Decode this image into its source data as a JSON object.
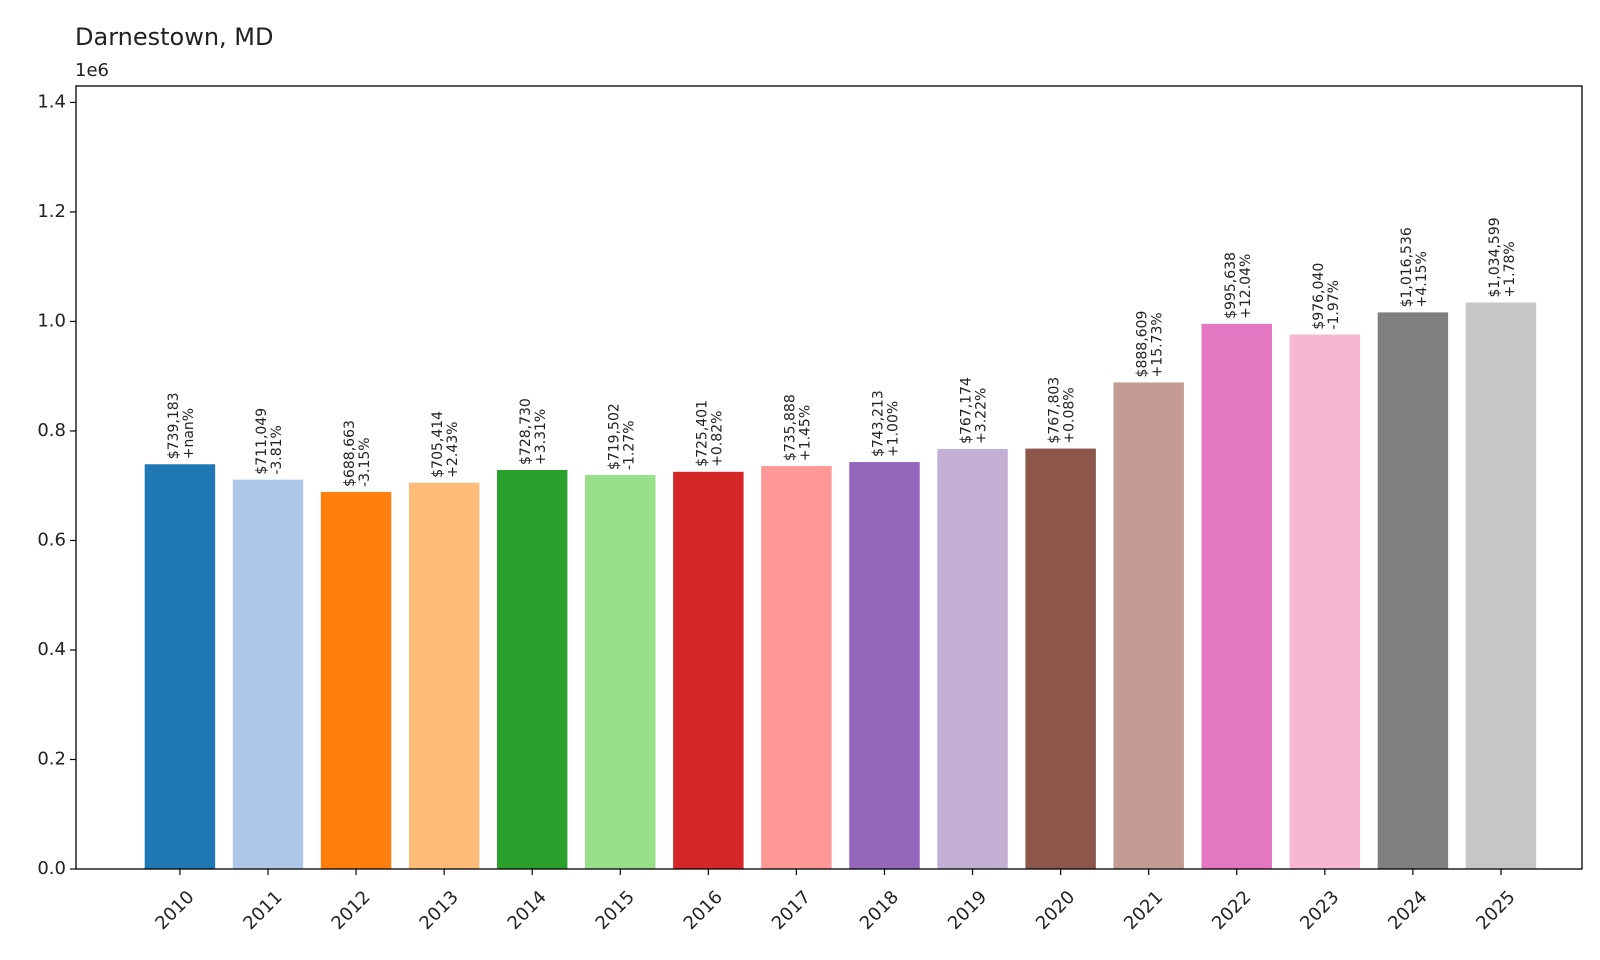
{
  "chart_data": {
    "type": "bar",
    "title": "Darnestown, MD",
    "y_offset_label": "1e6",
    "xlabel": "",
    "ylabel": "",
    "ylim": [
      0,
      1.43
    ],
    "yticks": [
      "0.0",
      "0.2",
      "0.4",
      "0.6",
      "0.8",
      "1.0",
      "1.2",
      "1.4"
    ],
    "ytick_values": [
      0,
      0.2,
      0.4,
      0.6,
      0.8,
      1.0,
      1.2,
      1.4
    ],
    "grid": false,
    "legend": "none",
    "categories": [
      "2010",
      "2011",
      "2012",
      "2013",
      "2014",
      "2015",
      "2016",
      "2017",
      "2018",
      "2019",
      "2020",
      "2021",
      "2022",
      "2023",
      "2024",
      "2025"
    ],
    "values": [
      739183,
      711049,
      688663,
      705414,
      728730,
      719502,
      725401,
      735888,
      743213,
      767174,
      767803,
      888609,
      995638,
      976040,
      1016536,
      1034599
    ],
    "value_labels": [
      "$739,183",
      "$711,049",
      "$688,663",
      "$705,414",
      "$728,730",
      "$719,502",
      "$725,401",
      "$735,888",
      "$743,213",
      "$767,174",
      "$767,803",
      "$888,609",
      "$995,638",
      "$976,040",
      "$1,016,536",
      "$1,034,599"
    ],
    "change_labels": [
      "+nan%",
      "-3.81%",
      "-3.15%",
      "+2.43%",
      "+3.31%",
      "-1.27%",
      "+0.82%",
      "+1.45%",
      "+1.00%",
      "+3.22%",
      "+0.08%",
      "+15.73%",
      "+12.04%",
      "-1.97%",
      "+4.15%",
      "+1.78%"
    ],
    "colors": [
      "#1f77b4",
      "#aec7e8",
      "#ff7f0e",
      "#ffbb78",
      "#2ca02c",
      "#98df8a",
      "#d62728",
      "#ff9896",
      "#9467bd",
      "#c5b0d5",
      "#8c564b",
      "#c49c94",
      "#e377c2",
      "#f7b6d2",
      "#7f7f7f",
      "#c7c7c7"
    ]
  }
}
